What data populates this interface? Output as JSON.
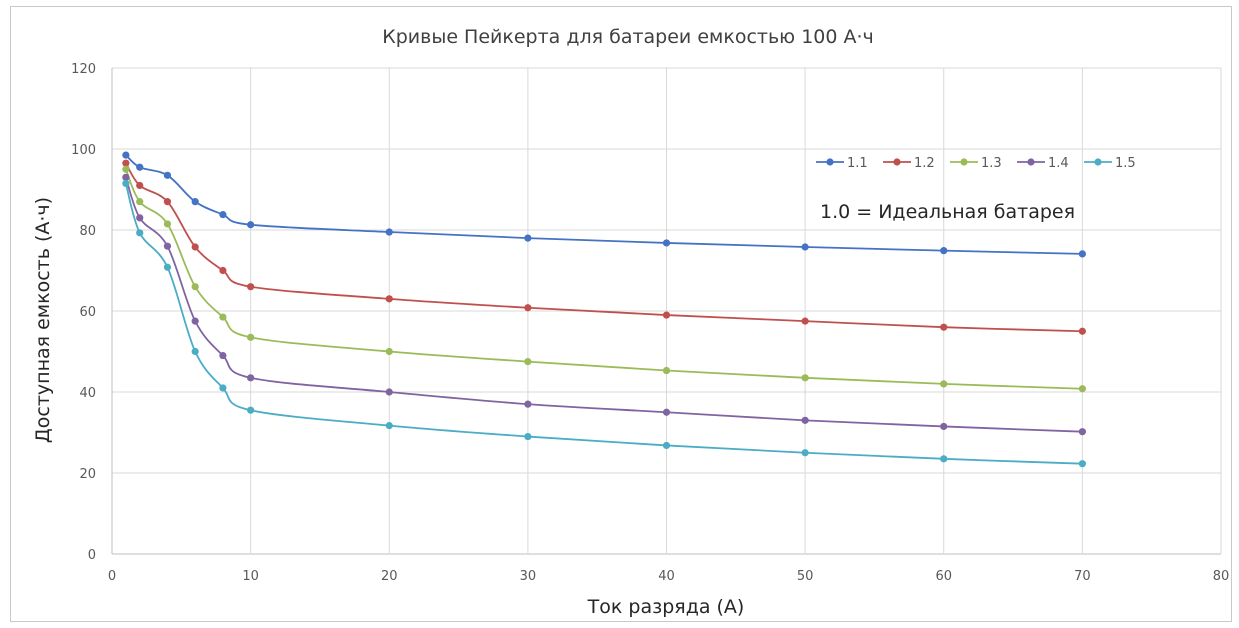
{
  "chart_data": {
    "type": "line",
    "title": "Кривые Пейкерта для батареи емкостью 100 А·ч",
    "xlabel": "Ток разряда (А)",
    "ylabel": "Доступная емкость (А·ч)",
    "xlim": [
      0,
      80
    ],
    "ylim": [
      0,
      120
    ],
    "x_ticks": [
      "0",
      "10",
      "20",
      "30",
      "40",
      "50",
      "60",
      "70",
      "80"
    ],
    "y_ticks": [
      "0",
      "20",
      "40",
      "60",
      "80",
      "100",
      "120"
    ],
    "grid": true,
    "legend_position": "top-right",
    "annotation": "1.0 = Идеальная батарея",
    "x": [
      1,
      2,
      4,
      6,
      8,
      10,
      20,
      30,
      40,
      50,
      60,
      70
    ],
    "series": [
      {
        "name": "1.1",
        "color": "#4472C4",
        "values": [
          98.5,
          95.5,
          93.5,
          87,
          83.8,
          81.3,
          79.5,
          78,
          76.8,
          75.8,
          74.9,
          74.1
        ]
      },
      {
        "name": "1.2",
        "color": "#C0504D",
        "values": [
          96.5,
          91,
          87,
          75.8,
          70,
          66,
          63,
          60.8,
          59,
          57.5,
          56,
          55
        ]
      },
      {
        "name": "1.3",
        "color": "#9BBB59",
        "values": [
          95,
          87,
          81.5,
          66,
          58.5,
          53.5,
          50,
          47.5,
          45.3,
          43.5,
          42,
          40.8
        ]
      },
      {
        "name": "1.4",
        "color": "#8064A2",
        "values": [
          93,
          83,
          76,
          57.5,
          49,
          43.5,
          40,
          37,
          35,
          33,
          31.5,
          30.2
        ]
      },
      {
        "name": "1.5",
        "color": "#4BACC6",
        "values": [
          91.5,
          79.3,
          70.8,
          50,
          41,
          35.5,
          31.7,
          29,
          26.8,
          25,
          23.5,
          22.3
        ]
      }
    ]
  }
}
